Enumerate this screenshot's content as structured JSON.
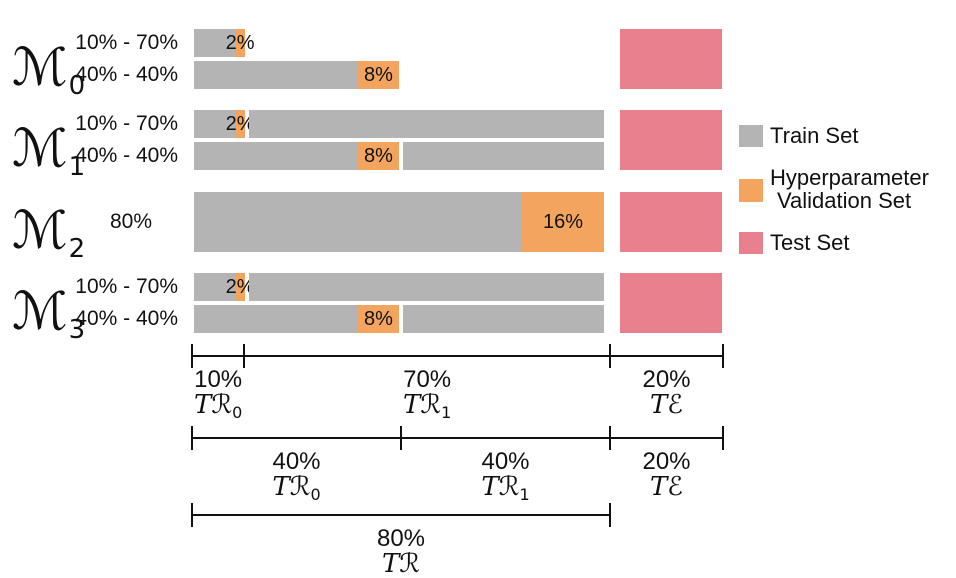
{
  "palette": {
    "train": "#b4b4b4",
    "val": "#f3a45e",
    "test": "#e8808d",
    "text": "#111111"
  },
  "legend": {
    "train_label": "Train Set",
    "val_label_line1": "Hyperparameter",
    "val_label_line2": "Validation Set",
    "test_label": "Test Set"
  },
  "models": [
    {
      "name": "ℳ",
      "sub": "0",
      "rows": [
        {
          "label": "10% - 70%",
          "segments": [
            {
              "type": "train",
              "from": 0,
              "to": 8
            },
            {
              "type": "val",
              "from": 8,
              "to": 10,
              "text": "2%"
            }
          ]
        },
        {
          "label": "40% - 40%",
          "segments": [
            {
              "type": "train",
              "from": 0,
              "to": 32
            },
            {
              "type": "val",
              "from": 32,
              "to": 40,
              "text": "8%"
            }
          ]
        }
      ]
    },
    {
      "name": "ℳ",
      "sub": "1",
      "rows": [
        {
          "label": "10% - 70%",
          "segments": [
            {
              "type": "train",
              "from": 0,
              "to": 8
            },
            {
              "type": "val",
              "from": 8,
              "to": 10,
              "text": "2%"
            },
            {
              "type": "train",
              "from": 10.7,
              "to": 80
            }
          ]
        },
        {
          "label": "40% - 40%",
          "segments": [
            {
              "type": "train",
              "from": 0,
              "to": 32
            },
            {
              "type": "val",
              "from": 32,
              "to": 40,
              "text": "8%"
            },
            {
              "type": "train",
              "from": 40.7,
              "to": 80
            }
          ]
        }
      ]
    },
    {
      "name": "ℳ",
      "sub": "2",
      "rows": [
        {
          "label": "80%",
          "segments": [
            {
              "type": "train",
              "from": 0,
              "to": 64
            },
            {
              "type": "val",
              "from": 64,
              "to": 80,
              "text": "16%"
            }
          ]
        }
      ]
    },
    {
      "name": "ℳ",
      "sub": "3",
      "rows": [
        {
          "label": "10% - 70%",
          "segments": [
            {
              "type": "train",
              "from": 0,
              "to": 8
            },
            {
              "type": "val",
              "from": 8,
              "to": 10,
              "text": "2%"
            },
            {
              "type": "train",
              "from": 10.7,
              "to": 80
            }
          ]
        },
        {
          "label": "40% - 40%",
          "segments": [
            {
              "type": "train",
              "from": 0,
              "to": 32
            },
            {
              "type": "val",
              "from": 32,
              "to": 40,
              "text": "8%"
            },
            {
              "type": "train",
              "from": 40.7,
              "to": 80
            }
          ]
        }
      ]
    }
  ],
  "rulers": [
    {
      "ticks": [
        0,
        10,
        80,
        100
      ],
      "segments": [
        {
          "from": 0,
          "to": 10,
          "pct": "10%",
          "t": "T",
          "script": "ℛ",
          "sub": "0"
        },
        {
          "from": 10,
          "to": 80,
          "pct": "70%",
          "t": "T",
          "script": "ℛ",
          "sub": "1"
        },
        {
          "from": 80,
          "to": 100,
          "pct": "20%",
          "t": "T",
          "script": "ℰ",
          "sub": ""
        }
      ]
    },
    {
      "ticks": [
        0,
        40,
        80,
        100
      ],
      "segments": [
        {
          "from": 0,
          "to": 40,
          "pct": "40%",
          "t": "T",
          "script": "ℛ",
          "sub": "0"
        },
        {
          "from": 40,
          "to": 80,
          "pct": "40%",
          "t": "T",
          "script": "ℛ",
          "sub": "1"
        },
        {
          "from": 80,
          "to": 100,
          "pct": "20%",
          "t": "T",
          "script": "ℰ",
          "sub": ""
        }
      ]
    },
    {
      "ticks": [
        0,
        80
      ],
      "segments": [
        {
          "from": 0,
          "to": 80,
          "pct": "80%",
          "t": "T",
          "script": "ℛ",
          "sub": ""
        }
      ]
    }
  ]
}
